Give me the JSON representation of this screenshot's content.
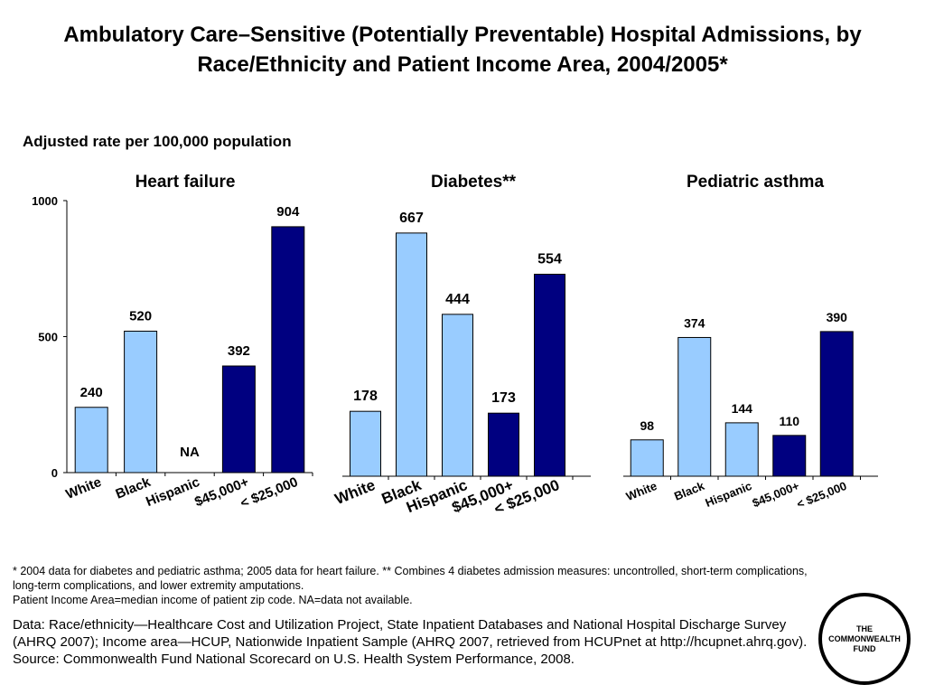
{
  "title": "Ambulatory Care–Sensitive (Potentially Preventable) Hospital Admissions, by Race/Ethnicity and Patient Income Area, 2004/2005*",
  "subtitle": "Adjusted rate per 100,000 population",
  "colors": {
    "race": "#99ccff",
    "income": "#000080",
    "outline": "#000000"
  },
  "chart_data": [
    {
      "type": "bar",
      "title": "Heart failure",
      "categories": [
        "White",
        "Black",
        "Hispanic",
        "$45,000+",
        "< $25,000"
      ],
      "values": [
        240,
        520,
        null,
        392,
        904
      ],
      "data_labels": [
        "240",
        "520",
        "NA",
        "392",
        "904"
      ],
      "ylim": [
        0,
        1000
      ],
      "yticks": [
        "0",
        "500",
        "1000"
      ],
      "grid": false
    },
    {
      "type": "bar",
      "title": "Diabetes**",
      "categories": [
        "White",
        "Black",
        "Hispanic",
        "$45,000+",
        "< $25,000"
      ],
      "values": [
        178,
        667,
        444,
        173,
        554
      ],
      "data_labels": [
        "178",
        "667",
        "444",
        "173",
        "554"
      ],
      "grid": false
    },
    {
      "type": "bar",
      "title": "Pediatric asthma",
      "categories": [
        "White",
        "Black",
        "Hispanic",
        "$45,000+",
        "< $25,000"
      ],
      "values": [
        98,
        374,
        144,
        110,
        390
      ],
      "data_labels": [
        "98",
        "374",
        "144",
        "110",
        "390"
      ],
      "grid": false
    }
  ],
  "footnote": {
    "line1": "* 2004 data for diabetes and pediatric asthma; 2005 data for heart failure. ** Combines 4 diabetes admission measures: uncontrolled, short-term complications, long-term complications, and lower extremity amputations.",
    "line2": "Patient Income Area=median income of patient zip code. NA=data not available."
  },
  "source": {
    "line1": "Data: Race/ethnicity—Healthcare Cost and Utilization Project, State Inpatient Databases and National Hospital Discharge Survey (AHRQ 2007); Income area—HCUP, Nationwide Inpatient Sample (AHRQ 2007, retrieved from HCUPnet at http://hcupnet.ahrq.gov).",
    "line2": "Source: Commonwealth Fund National Scorecard on U.S. Health System Performance, 2008."
  },
  "logo": {
    "line1": "THE",
    "line2": "COMMONWEALTH",
    "line3": "FUND"
  }
}
